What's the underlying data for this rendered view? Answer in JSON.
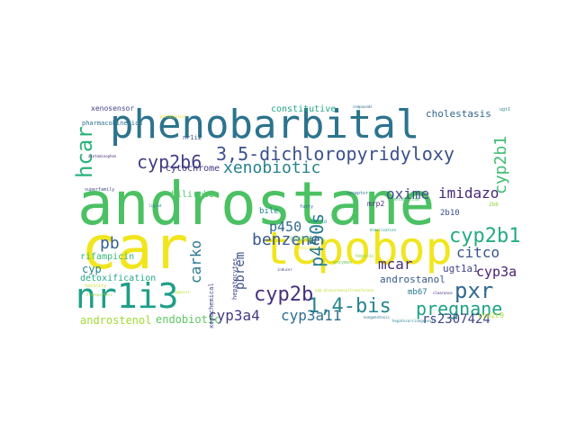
{
  "wordcloud": {
    "words": [
      {
        "text": "androstane",
        "color": "#4cc164"
      },
      {
        "text": "car",
        "color": "#f1e51d"
      },
      {
        "text": "phenobarbital",
        "color": "#2c738e"
      },
      {
        "text": "tcpobop",
        "color": "#f1e51d"
      },
      {
        "text": "nr1i3",
        "color": "#1f9e89"
      },
      {
        "text": "3,5-dichloropyridyloxy",
        "color": "#3b518b"
      },
      {
        "text": "1,4-bis",
        "color": "#25858e"
      },
      {
        "text": "cyp2b6",
        "color": "#433e85"
      },
      {
        "text": "xenobiotic",
        "color": "#26828e"
      },
      {
        "text": "hcar",
        "color": "#2db27d"
      },
      {
        "text": "cyp2b10",
        "color": "#25ab82"
      },
      {
        "text": "benzene",
        "color": "#38598c"
      },
      {
        "text": "cyp2b",
        "color": "#46327e"
      },
      {
        "text": "pxr",
        "color": "#31688e"
      },
      {
        "text": "pregnane",
        "color": "#1fa188"
      },
      {
        "text": "p450s",
        "color": "#287d8e"
      },
      {
        "text": "oxime",
        "color": "#3e4a89"
      },
      {
        "text": "imidazo",
        "color": "#482878"
      },
      {
        "text": "pb",
        "color": "#34618d"
      },
      {
        "text": "cyp2b1",
        "color": "#3fbc73"
      },
      {
        "text": "mcar",
        "color": "#472d7b"
      },
      {
        "text": "citco",
        "color": "#3a548c"
      },
      {
        "text": "cyp3a",
        "color": "#482173"
      },
      {
        "text": "p450",
        "color": "#31688e"
      },
      {
        "text": "cyp3a4",
        "color": "#443a83"
      },
      {
        "text": "cyp3a11",
        "color": "#2e6f8e"
      },
      {
        "text": "rs2307424",
        "color": "#414487"
      },
      {
        "text": "androstenol",
        "color": "#a2da37"
      },
      {
        "text": "endobiotic",
        "color": "#5ec962"
      },
      {
        "text": "carko",
        "color": "#2a788e"
      },
      {
        "text": "pbrem",
        "color": "#3b528b"
      },
      {
        "text": "cyp",
        "color": "#26828e"
      },
      {
        "text": "detoxification",
        "color": "#22a884"
      },
      {
        "text": "rifampicin",
        "color": "#35b779"
      },
      {
        "text": "androstanol",
        "color": "#38588c"
      },
      {
        "text": "ugt1a1",
        "color": "#404688"
      },
      {
        "text": "cytochrome",
        "color": "#453781"
      },
      {
        "text": "bilirubin",
        "color": "#54c568"
      },
      {
        "text": "constitutive",
        "color": "#22a785"
      },
      {
        "text": "cholestasis",
        "color": "#31668e"
      },
      {
        "text": "xenosensor",
        "color": "#404588"
      },
      {
        "text": "bile",
        "color": "#23898e"
      },
      {
        "text": "mrp2",
        "color": "#46307e"
      },
      {
        "text": "2b10",
        "color": "#3d4d8a"
      },
      {
        "text": "cyp1a2",
        "color": "#6ccd5a"
      },
      {
        "text": "nr1i2",
        "color": "#3b528b"
      },
      {
        "text": "hepatocytes",
        "color": "#414487"
      },
      {
        "text": "xenochemical",
        "color": "#3e4989"
      },
      {
        "text": "pharmacokinetics",
        "color": "#2c728e"
      },
      {
        "text": "mb67",
        "color": "#2a768e"
      },
      {
        "text": "cyp2c9",
        "color": "#addc30"
      },
      {
        "text": "2b6",
        "color": "#8fd744"
      },
      {
        "text": "superfamily",
        "color": "#3e4a89"
      },
      {
        "text": "acetaminophen",
        "color": "#481f70"
      },
      {
        "text": "nongenotoxic",
        "color": "#31688e"
      },
      {
        "text": "hepatocarcinogenesis",
        "color": "#26828e"
      },
      {
        "text": "udp-glucuronosyltransferase",
        "color": "#bddf26"
      },
      {
        "text": "clearance",
        "color": "#482475"
      },
      {
        "text": "toxicity",
        "color": "#c8e020"
      },
      {
        "text": "transporters",
        "color": "#93d741"
      },
      {
        "text": "fatty",
        "color": "#2f6c8e"
      },
      {
        "text": "steroid",
        "color": "#20928c"
      },
      {
        "text": "nuclear",
        "color": "#fde725"
      },
      {
        "text": "hepatic",
        "color": "#90d743"
      },
      {
        "text": "enzymes",
        "color": "#6ece58"
      },
      {
        "text": "receptor",
        "color": "#2d708e"
      },
      {
        "text": "metabolism",
        "color": "#4ac16d"
      },
      {
        "text": "dimerization",
        "color": "#1e9b8a"
      },
      {
        "text": "inducer",
        "color": "#3f4788"
      },
      {
        "text": "agonist",
        "color": "#b5de2b"
      },
      {
        "text": "ligand",
        "color": "#228d8d"
      },
      {
        "text": "compounds",
        "color": "#2f6b8e"
      },
      {
        "text": "prototypical",
        "color": "#dde318"
      },
      {
        "text": "ugt1",
        "color": "#24878e"
      }
    ]
  }
}
